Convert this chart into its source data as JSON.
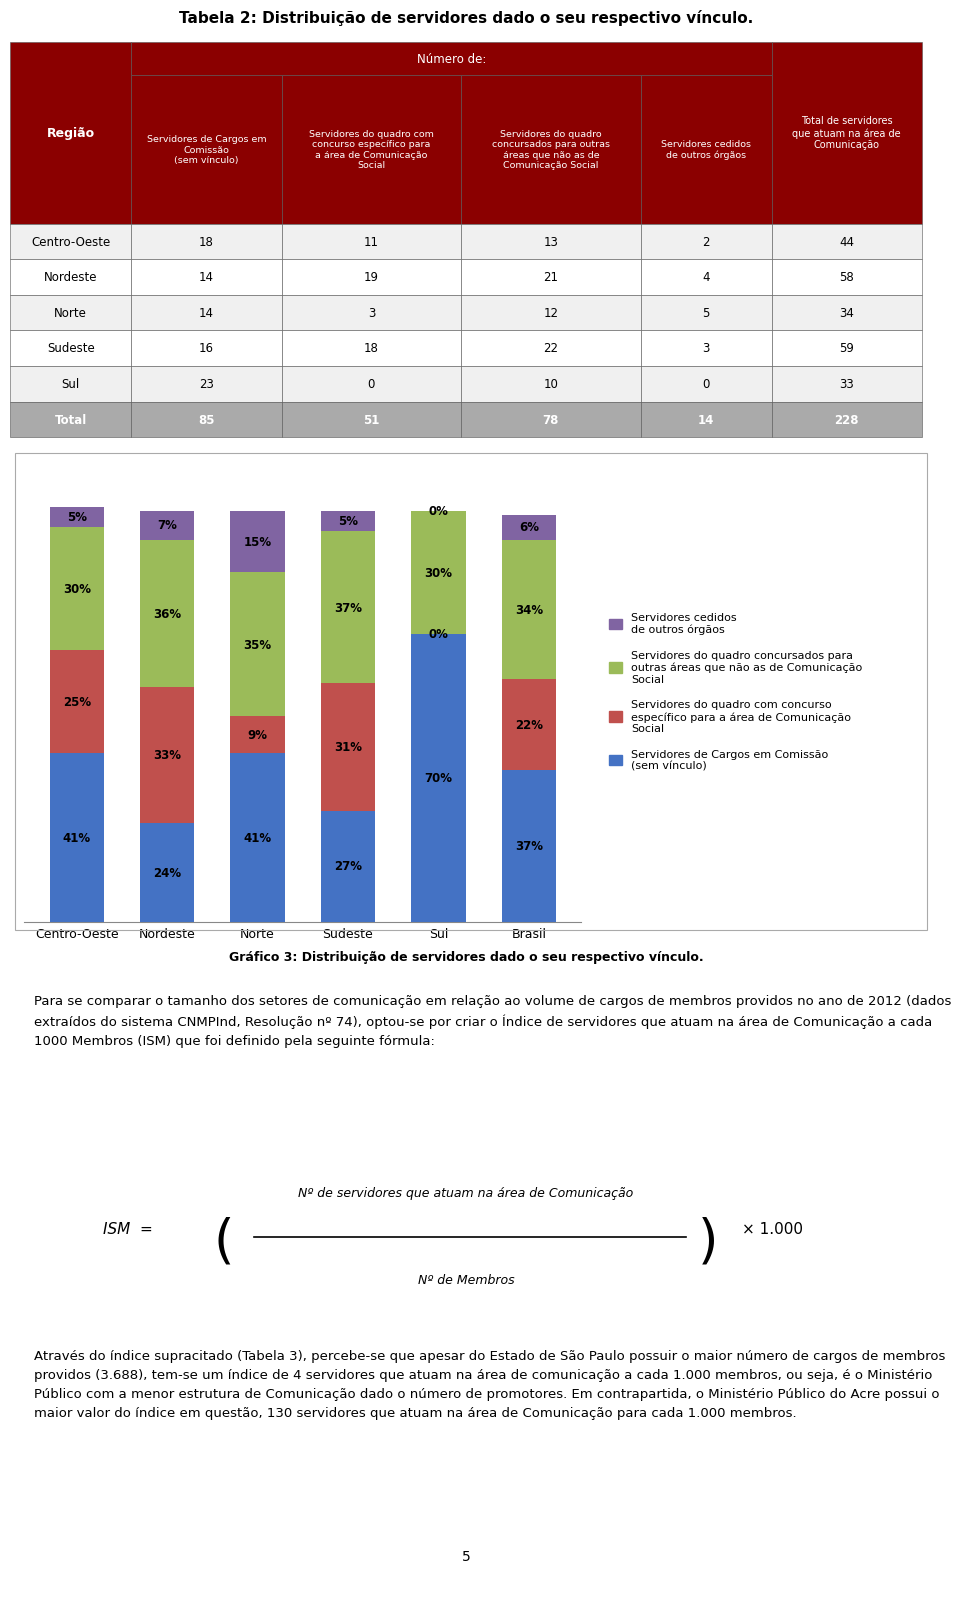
{
  "title_table": "Tabela 2: Distribuição de servidores dado o seu respectivo vínculo.",
  "table_col_headers": [
    "Região",
    "Servidores de Cargos em\nComissão\n(sem vínculo)",
    "Servidores do quadro com\nconcurso específico para\na área de Comunicação\nSocial",
    "Servidores do quadro\nconcursados para outras\náreas que não as de\nComunicação Social",
    "Servidores cedidos\nde outros órgãos",
    "Total de servidores\nque atuam na área de\nComunicação"
  ],
  "table_rows": [
    [
      "Centro-Oeste",
      18,
      11,
      13,
      2,
      44
    ],
    [
      "Nordeste",
      14,
      19,
      21,
      4,
      58
    ],
    [
      "Norte",
      14,
      3,
      12,
      5,
      34
    ],
    [
      "Sudeste",
      16,
      18,
      22,
      3,
      59
    ],
    [
      "Sul",
      23,
      0,
      10,
      0,
      33
    ]
  ],
  "table_total": [
    "Total",
    85,
    51,
    78,
    14,
    228
  ],
  "dark_red": "#8B0000",
  "light_gray": "#E8E8E8",
  "medium_gray": "#AAAAAA",
  "white": "#FFFFFF",
  "chart_title": "Gráfico 3: Distribuição de servidores dado o seu respectivo vínculo.",
  "bar_categories": [
    "Centro-Oeste",
    "Nordeste",
    "Norte",
    "Sudeste",
    "Sul",
    "Brasil"
  ],
  "bar_data": {
    "comissao": [
      41,
      24,
      41,
      27,
      70,
      37
    ],
    "concurso_cs": [
      25,
      33,
      9,
      31,
      0,
      22
    ],
    "outras": [
      30,
      36,
      35,
      37,
      30,
      34
    ],
    "cedidos": [
      5,
      7,
      15,
      5,
      0,
      6
    ]
  },
  "bar_colors": {
    "comissao": "#4472C4",
    "concurso_cs": "#C0504D",
    "outras": "#9BBB59",
    "cedidos": "#8064A2"
  },
  "legend_labels": [
    "Servidores cedidos\nde outros órgãos",
    "Servidores do quadro concursados para\noutras áreas que não as de Comunicação\nSocial",
    "Servidores do quadro com concurso\nespecífico para a área de Comunicação\nSocial",
    "Servidores de Cargos em Comissão\n(sem vínculo)"
  ],
  "body_text": "Para se comparar o tamanho dos setores de comunicação em relação ao volume de cargos de membros providos no ano de 2012 (dados extraídos do sistema CNMPInd, Resolução nº 74), optou-se por criar o Índice de servidores que atuam na área de Comunicação a cada 1000 Membros (ISM) que foi definido pela seguinte fórmula:",
  "formula_numerator": "Nº de servidores que atuam na área de Comunicação",
  "formula_denominator": "Nº de Membros",
  "body_text2": "Através do índice supracitado (Tabela 3), percebe-se que apesar do Estado de São Paulo possuir o maior número de cargos de membros providos (3.688), tem-se um índice de 4 servidores que atuam na área de comunicação a cada 1.000 membros, ou seja, é o Ministério Público com a menor estrutura de Comunicação dado o número de promotores. Em contrapartida, o Ministério Público do Acre possui o maior valor do índice em questão, 130 servidores que atuam na área de Comunicação para cada 1.000 membros.",
  "page_number": "5"
}
